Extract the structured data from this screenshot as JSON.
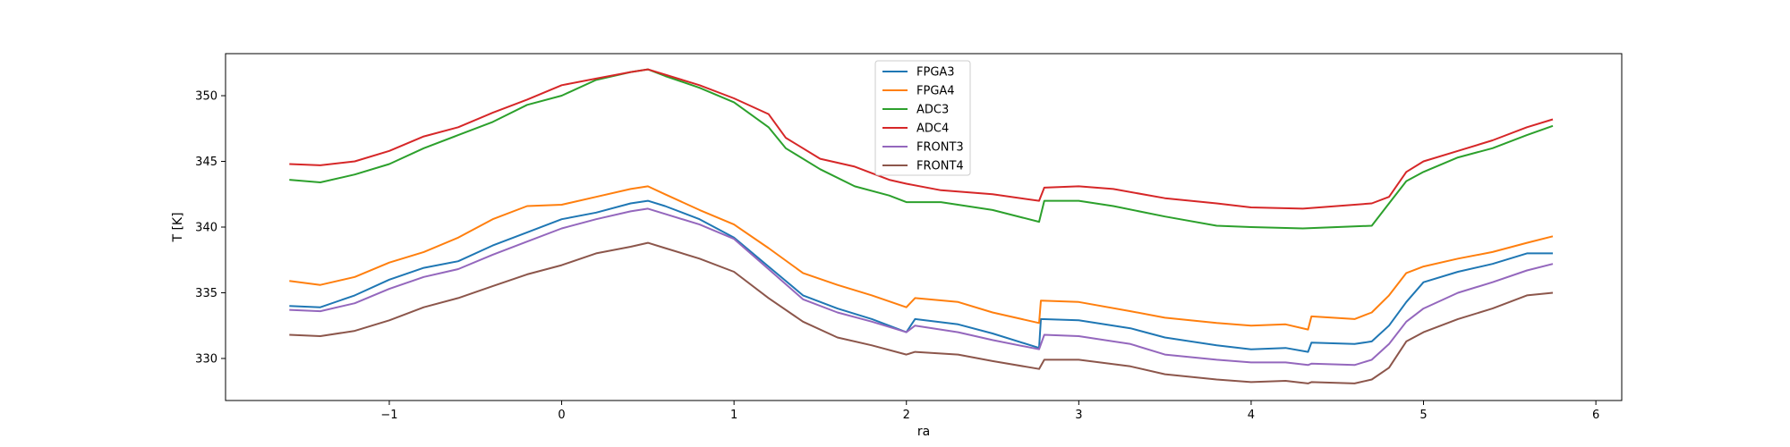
{
  "chart_data": {
    "type": "line",
    "title": "",
    "xlabel": "ra",
    "ylabel": "T [K]",
    "xlim": [
      -1.95,
      6.15
    ],
    "ylim": [
      326.8,
      353.2
    ],
    "xticks": [
      -1,
      0,
      1,
      2,
      3,
      4,
      5,
      6
    ],
    "xtick_labels": [
      "−1",
      "0",
      "1",
      "2",
      "3",
      "4",
      "5",
      "6"
    ],
    "yticks": [
      330,
      335,
      340,
      345,
      350
    ],
    "ytick_labels": [
      "330",
      "335",
      "340",
      "345",
      "350"
    ],
    "grid": false,
    "legend_position": "top-center",
    "series": [
      {
        "name": "FPGA3",
        "color": "#1f77b4",
        "x": [
          -1.58,
          -1.4,
          -1.2,
          -1.0,
          -0.8,
          -0.6,
          -0.4,
          -0.2,
          0.0,
          0.2,
          0.4,
          0.5,
          0.6,
          0.8,
          1.0,
          1.2,
          1.4,
          1.6,
          1.8,
          2.0,
          2.05,
          2.3,
          2.5,
          2.77,
          2.78,
          3.0,
          3.3,
          3.5,
          3.8,
          4.0,
          4.2,
          4.33,
          4.35,
          4.6,
          4.7,
          4.8,
          4.9,
          5.0,
          5.2,
          5.4,
          5.6,
          5.75
        ],
        "y": [
          334.0,
          333.9,
          334.8,
          336.0,
          336.9,
          337.4,
          338.6,
          339.6,
          340.6,
          341.1,
          341.8,
          342.0,
          341.6,
          340.6,
          339.2,
          337.0,
          334.8,
          333.8,
          333.0,
          332.0,
          333.0,
          332.6,
          331.9,
          330.8,
          333.0,
          332.9,
          332.3,
          331.6,
          331.0,
          330.7,
          330.8,
          330.5,
          331.2,
          331.1,
          331.3,
          332.5,
          334.3,
          335.8,
          336.6,
          337.2,
          338.0,
          338.0
        ]
      },
      {
        "name": "FPGA4",
        "color": "#ff7f0e",
        "x": [
          -1.58,
          -1.4,
          -1.2,
          -1.0,
          -0.8,
          -0.6,
          -0.4,
          -0.2,
          0.0,
          0.2,
          0.4,
          0.5,
          0.6,
          0.8,
          1.0,
          1.2,
          1.4,
          1.6,
          1.8,
          2.0,
          2.05,
          2.3,
          2.5,
          2.77,
          2.78,
          3.0,
          3.3,
          3.5,
          3.8,
          4.0,
          4.2,
          4.33,
          4.35,
          4.6,
          4.7,
          4.8,
          4.9,
          5.0,
          5.2,
          5.4,
          5.6,
          5.75
        ],
        "y": [
          335.9,
          335.6,
          336.2,
          337.3,
          338.1,
          339.2,
          340.6,
          341.6,
          341.7,
          342.3,
          342.9,
          343.1,
          342.5,
          341.3,
          340.2,
          338.4,
          336.5,
          335.6,
          334.8,
          333.9,
          334.6,
          334.3,
          333.5,
          332.7,
          334.4,
          334.3,
          333.6,
          333.1,
          332.7,
          332.5,
          332.6,
          332.2,
          333.2,
          333.0,
          333.5,
          334.8,
          336.5,
          337.0,
          337.6,
          338.1,
          338.8,
          339.3
        ]
      },
      {
        "name": "ADC3",
        "color": "#2ca02c",
        "x": [
          -1.58,
          -1.4,
          -1.2,
          -1.0,
          -0.8,
          -0.6,
          -0.4,
          -0.2,
          0.0,
          0.2,
          0.4,
          0.5,
          0.6,
          0.8,
          1.0,
          1.2,
          1.3,
          1.5,
          1.7,
          1.9,
          2.0,
          2.2,
          2.5,
          2.77,
          2.8,
          3.0,
          3.2,
          3.5,
          3.8,
          4.0,
          4.3,
          4.7,
          4.8,
          4.9,
          5.0,
          5.2,
          5.4,
          5.6,
          5.75
        ],
        "y": [
          343.6,
          343.4,
          344.0,
          344.8,
          346.0,
          347.0,
          348.0,
          349.3,
          350.0,
          351.2,
          351.8,
          352.0,
          351.5,
          350.6,
          349.5,
          347.6,
          346.0,
          344.4,
          343.1,
          342.4,
          341.9,
          341.9,
          341.3,
          340.4,
          342.0,
          342.0,
          341.6,
          340.8,
          340.1,
          340.0,
          339.9,
          340.1,
          341.8,
          343.5,
          344.2,
          345.3,
          346.0,
          347.0,
          347.7
        ]
      },
      {
        "name": "ADC4",
        "color": "#d62728",
        "x": [
          -1.58,
          -1.4,
          -1.2,
          -1.0,
          -0.8,
          -0.6,
          -0.4,
          -0.2,
          0.0,
          0.2,
          0.4,
          0.5,
          0.6,
          0.8,
          1.0,
          1.2,
          1.3,
          1.5,
          1.7,
          1.9,
          2.0,
          2.2,
          2.5,
          2.77,
          2.8,
          3.0,
          3.2,
          3.5,
          3.8,
          4.0,
          4.3,
          4.7,
          4.8,
          4.9,
          5.0,
          5.2,
          5.4,
          5.6,
          5.75
        ],
        "y": [
          344.8,
          344.7,
          345.0,
          345.8,
          346.9,
          347.6,
          348.7,
          349.7,
          350.8,
          351.3,
          351.8,
          352.0,
          351.6,
          350.8,
          349.8,
          348.6,
          346.8,
          345.2,
          344.6,
          343.6,
          343.3,
          342.8,
          342.5,
          342.0,
          343.0,
          343.1,
          342.9,
          342.2,
          341.8,
          341.5,
          341.4,
          341.8,
          342.3,
          344.2,
          345.0,
          345.8,
          346.6,
          347.6,
          348.2
        ]
      },
      {
        "name": "FRONT3",
        "color": "#9467bd",
        "x": [
          -1.58,
          -1.4,
          -1.2,
          -1.0,
          -0.8,
          -0.6,
          -0.4,
          -0.2,
          0.0,
          0.2,
          0.4,
          0.5,
          0.6,
          0.8,
          1.0,
          1.2,
          1.4,
          1.6,
          1.8,
          2.0,
          2.05,
          2.3,
          2.5,
          2.77,
          2.8,
          3.0,
          3.3,
          3.5,
          3.8,
          4.0,
          4.2,
          4.33,
          4.35,
          4.6,
          4.7,
          4.8,
          4.9,
          5.0,
          5.2,
          5.4,
          5.6,
          5.75
        ],
        "y": [
          333.7,
          333.6,
          334.2,
          335.3,
          336.2,
          336.8,
          337.9,
          338.9,
          339.9,
          340.6,
          341.2,
          341.4,
          341.0,
          340.2,
          339.1,
          336.8,
          334.5,
          333.5,
          332.8,
          332.0,
          332.5,
          332.0,
          331.4,
          330.7,
          331.8,
          331.7,
          331.1,
          330.3,
          329.9,
          329.7,
          329.7,
          329.5,
          329.6,
          329.5,
          329.9,
          331.1,
          332.8,
          333.8,
          335.0,
          335.8,
          336.7,
          337.2
        ]
      },
      {
        "name": "FRONT4",
        "color": "#8c564b",
        "x": [
          -1.58,
          -1.4,
          -1.2,
          -1.0,
          -0.8,
          -0.6,
          -0.4,
          -0.2,
          0.0,
          0.2,
          0.4,
          0.5,
          0.6,
          0.8,
          1.0,
          1.2,
          1.4,
          1.6,
          1.8,
          2.0,
          2.05,
          2.3,
          2.5,
          2.77,
          2.8,
          3.0,
          3.3,
          3.5,
          3.8,
          4.0,
          4.2,
          4.33,
          4.35,
          4.6,
          4.7,
          4.8,
          4.9,
          5.0,
          5.2,
          5.4,
          5.6,
          5.75
        ],
        "y": [
          331.8,
          331.7,
          332.1,
          332.9,
          333.9,
          334.6,
          335.5,
          336.4,
          337.1,
          338.0,
          338.5,
          338.8,
          338.4,
          337.6,
          336.6,
          334.6,
          332.8,
          331.6,
          331.0,
          330.3,
          330.5,
          330.3,
          329.8,
          329.2,
          329.9,
          329.9,
          329.4,
          328.8,
          328.4,
          328.2,
          328.3,
          328.1,
          328.2,
          328.1,
          328.4,
          329.3,
          331.3,
          332.0,
          333.0,
          333.8,
          334.8,
          335.0
        ]
      }
    ]
  }
}
